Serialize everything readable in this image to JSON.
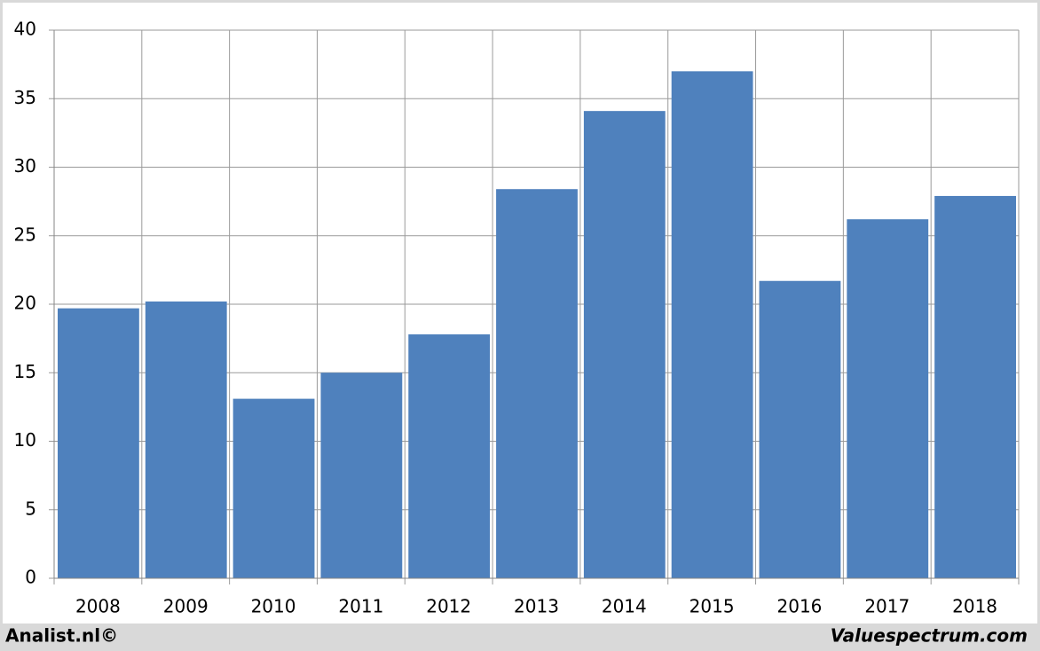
{
  "chart_data": {
    "type": "bar",
    "categories": [
      "2008",
      "2009",
      "2010",
      "2011",
      "2012",
      "2013",
      "2014",
      "2015",
      "2016",
      "2017",
      "2018"
    ],
    "values": [
      19.7,
      20.2,
      13.1,
      15.0,
      17.8,
      28.4,
      34.1,
      37.0,
      21.7,
      26.2,
      27.9
    ],
    "color": "#4f81bd",
    "ylim": [
      0,
      40
    ],
    "yticks": [
      0,
      5,
      10,
      15,
      20,
      25,
      30,
      35,
      40
    ],
    "grid": true,
    "annotations": [
      "Analist.nl©",
      "Valuespectrum.com"
    ]
  }
}
